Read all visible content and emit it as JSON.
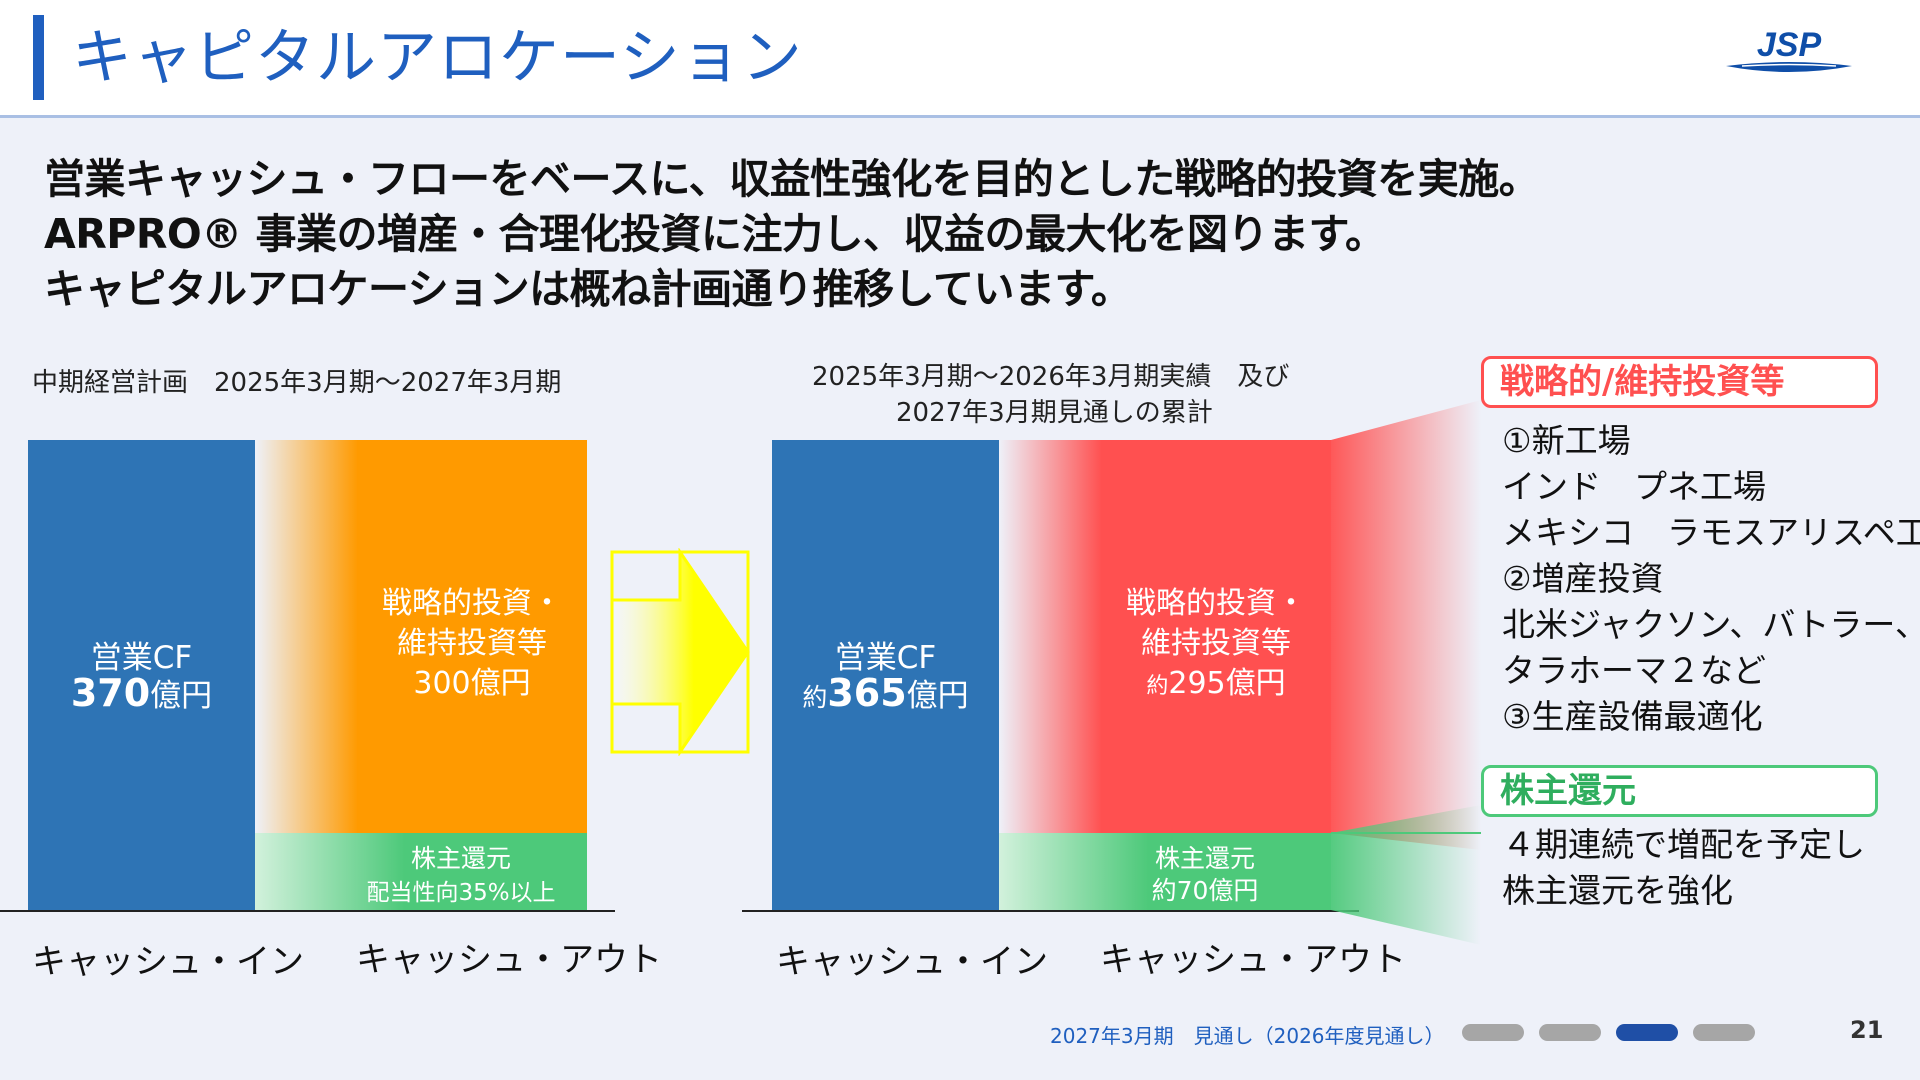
{
  "header": {
    "title": "キャピタルアロケーション",
    "logo_text": "JSP"
  },
  "headline": [
    "営業キャッシュ・フローをベースに、収益性強化を目的とした戦略的投資を実施。",
    "ARPRO® 事業の増産・合理化投資に注力し、収益の最大化を図ります。",
    "キャピタルアロケーションは概ね計画通り推移しています。"
  ],
  "left_chart": {
    "caption": "中期経営計画　2025年3月期～2027年3月期",
    "cash_in": {
      "line1": "営業CF",
      "value": "370",
      "unit": "億円"
    },
    "strategic": {
      "line1": "戦略的投資・",
      "line2": "維持投資等",
      "value": "300億円"
    },
    "return": {
      "line1": "株主還元",
      "line2": "配当性向35%以上"
    },
    "x_in": "キャッシュ・イン",
    "x_out": "キャッシュ・アウト"
  },
  "right_chart": {
    "caption_line1": "2025年3月期～2026年3月期実績　及び",
    "caption_line2": "2027年3月期見通しの累計",
    "cash_in": {
      "line1": "営業CF",
      "prefix": "約",
      "value": "365",
      "unit": "億円"
    },
    "strategic": {
      "line1": "戦略的投資・",
      "line2": "維持投資等",
      "prefix": "約",
      "value": "295億円"
    },
    "return": {
      "line1": "株主還元",
      "line2": "約70億円"
    },
    "x_in": "キャッシュ・イン",
    "x_out": "キャッシュ・アウト"
  },
  "strategic_box": {
    "title": "戦略的/維持投資等",
    "items": [
      "①新工場",
      "インド　プネ工場",
      "メキシコ　ラモスアリスペ工場",
      "②増産投資",
      "北米ジャクソン、バトラー、",
      "タラホーマ２など",
      "③生産設備最適化"
    ]
  },
  "return_box": {
    "title": "株主還元",
    "items": [
      "４期連続で増配を予定し",
      "株主還元を強化"
    ]
  },
  "footer": {
    "note": "2027年3月期　見通し（2026年度見通し）",
    "page_number": "21",
    "progress": {
      "total": 4,
      "active_index": 2
    }
  },
  "colors": {
    "title_blue": "#1f5fbf",
    "cash_in_blue": "#2e74b5",
    "plan_orange": "#ff9a00",
    "result_red": "#ff5050",
    "return_green": "#4dc97a",
    "arrow_yellow": "#ffff00"
  }
}
